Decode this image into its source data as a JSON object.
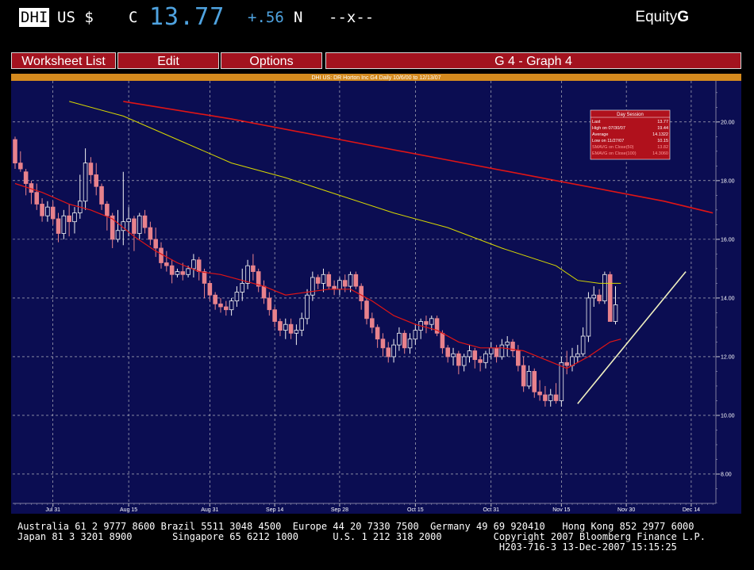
{
  "header": {
    "ticker": "DHI",
    "market": "US $",
    "flag": "C",
    "last_price": "13.77",
    "change": "+.56",
    "change_flag": "N",
    "extra": "--x--",
    "security_type": "Equity",
    "function_key": "G"
  },
  "menu": {
    "worksheet_list": "Worksheet List",
    "edit": "Edit",
    "options": "Options",
    "graph_title": "G  4 - Graph  4"
  },
  "colors": {
    "plot_bg": "#0b0d52",
    "candle_down": "#e8828c",
    "candle_up": "#f2f2f2",
    "ma_short": "#e01515",
    "ma_mid": "#d8d800",
    "ma_long": "#e01515",
    "trendline": "#f0f0c0",
    "info_box": "#b0111c"
  },
  "chart_data": {
    "type": "candlestick",
    "title": "DHI US: DR Horton Inc G4 Daily 10/6/00 to 12/13/07",
    "ylim": [
      7.0,
      21.4
    ],
    "y_ticks": [
      "20.00",
      "18.00",
      "16.00",
      "14.00",
      "12.00",
      "10.00",
      "8.00"
    ],
    "x_ticks": [
      "Jul 31",
      "Aug 15",
      "Aug 31",
      "Sep 14",
      "Sep 28",
      "Oct 15",
      "Oct 31",
      "Nov 15",
      "Nov 30",
      "Dec 14"
    ],
    "grid": "dashed-white",
    "candles_ohlc": [
      [
        19.4,
        19.5,
        18.4,
        18.6
      ],
      [
        18.6,
        19.0,
        18.3,
        18.4
      ],
      [
        18.3,
        18.4,
        17.5,
        17.9
      ],
      [
        17.9,
        18.0,
        17.2,
        17.6
      ],
      [
        17.6,
        17.9,
        17.0,
        17.2
      ],
      [
        17.2,
        17.4,
        16.6,
        16.8
      ],
      [
        16.8,
        17.3,
        16.6,
        17.1
      ],
      [
        17.1,
        17.3,
        16.5,
        16.7
      ],
      [
        16.7,
        16.9,
        15.9,
        16.2
      ],
      [
        16.2,
        17.0,
        16.0,
        16.8
      ],
      [
        16.8,
        17.2,
        16.1,
        16.6
      ],
      [
        16.6,
        17.1,
        16.2,
        16.9
      ],
      [
        16.9,
        18.2,
        16.7,
        17.3
      ],
      [
        17.3,
        19.1,
        17.0,
        18.6
      ],
      [
        18.6,
        18.8,
        17.9,
        18.2
      ],
      [
        18.2,
        18.6,
        17.5,
        17.8
      ],
      [
        17.8,
        17.9,
        17.0,
        17.2
      ],
      [
        17.2,
        17.3,
        16.3,
        16.8
      ],
      [
        16.8,
        16.9,
        15.7,
        16.0
      ],
      [
        16.0,
        17.0,
        15.9,
        16.3
      ],
      [
        16.3,
        18.3,
        15.8,
        16.6
      ],
      [
        16.6,
        17.1,
        16.1,
        16.7
      ],
      [
        16.7,
        16.8,
        15.6,
        16.2
      ],
      [
        16.2,
        16.9,
        16.0,
        16.8
      ],
      [
        16.8,
        17.0,
        16.2,
        16.4
      ],
      [
        16.4,
        16.6,
        15.8,
        16.0
      ],
      [
        16.0,
        16.4,
        15.4,
        15.7
      ],
      [
        15.7,
        15.9,
        15.0,
        15.2
      ],
      [
        15.2,
        15.6,
        14.9,
        15.1
      ],
      [
        15.1,
        15.3,
        14.5,
        14.8
      ],
      [
        14.8,
        15.0,
        14.7,
        14.9
      ],
      [
        14.9,
        15.2,
        14.6,
        14.8
      ],
      [
        14.8,
        15.1,
        14.7,
        15.0
      ],
      [
        15.0,
        15.5,
        14.7,
        15.3
      ],
      [
        15.3,
        15.4,
        14.6,
        14.9
      ],
      [
        14.9,
        15.0,
        14.0,
        14.5
      ],
      [
        14.5,
        14.6,
        13.9,
        14.1
      ],
      [
        14.1,
        14.2,
        13.6,
        13.8
      ],
      [
        13.8,
        14.0,
        13.5,
        13.7
      ],
      [
        13.7,
        13.9,
        13.4,
        13.6
      ],
      [
        13.6,
        14.0,
        13.4,
        13.9
      ],
      [
        13.9,
        14.4,
        13.7,
        14.2
      ],
      [
        14.2,
        15.0,
        13.9,
        14.5
      ],
      [
        14.5,
        15.3,
        14.3,
        15.1
      ],
      [
        15.1,
        15.5,
        14.6,
        14.9
      ],
      [
        14.9,
        15.0,
        14.2,
        14.4
      ],
      [
        14.4,
        14.6,
        13.8,
        14.0
      ],
      [
        14.0,
        14.2,
        13.4,
        13.6
      ],
      [
        13.6,
        13.7,
        13.0,
        13.2
      ],
      [
        13.2,
        13.3,
        12.7,
        12.9
      ],
      [
        12.9,
        13.3,
        12.6,
        13.1
      ],
      [
        13.1,
        13.3,
        12.6,
        12.8
      ],
      [
        12.8,
        13.1,
        12.4,
        12.9
      ],
      [
        12.9,
        13.5,
        12.7,
        13.3
      ],
      [
        13.3,
        14.3,
        13.1,
        14.1
      ],
      [
        14.1,
        14.9,
        13.9,
        14.7
      ],
      [
        14.7,
        14.8,
        14.3,
        14.5
      ],
      [
        14.5,
        15.0,
        14.2,
        14.8
      ],
      [
        14.8,
        14.9,
        14.3,
        14.4
      ],
      [
        14.4,
        14.6,
        14.1,
        14.3
      ],
      [
        14.3,
        14.7,
        14.1,
        14.6
      ],
      [
        14.6,
        14.8,
        14.2,
        14.4
      ],
      [
        14.4,
        14.9,
        14.2,
        14.8
      ],
      [
        14.8,
        14.9,
        14.3,
        14.4
      ],
      [
        14.4,
        14.5,
        13.6,
        13.9
      ],
      [
        13.9,
        14.0,
        13.1,
        13.3
      ],
      [
        13.3,
        13.5,
        12.8,
        13.0
      ],
      [
        13.0,
        13.1,
        12.3,
        12.6
      ],
      [
        12.6,
        12.8,
        12.0,
        12.3
      ],
      [
        12.3,
        12.5,
        11.8,
        12.0
      ],
      [
        12.0,
        12.6,
        11.8,
        12.4
      ],
      [
        12.4,
        13.0,
        12.2,
        12.8
      ],
      [
        12.8,
        12.9,
        12.1,
        12.3
      ],
      [
        12.3,
        12.8,
        12.1,
        12.6
      ],
      [
        12.6,
        13.1,
        12.4,
        12.9
      ],
      [
        12.9,
        13.3,
        12.6,
        13.2
      ],
      [
        13.2,
        13.4,
        12.8,
        13.1
      ],
      [
        13.1,
        13.4,
        12.9,
        13.3
      ],
      [
        13.3,
        13.4,
        12.7,
        12.8
      ],
      [
        12.8,
        12.9,
        12.1,
        12.3
      ],
      [
        12.3,
        12.4,
        11.8,
        12.0
      ],
      [
        12.0,
        12.3,
        11.7,
        12.1
      ],
      [
        12.1,
        12.2,
        11.4,
        11.7
      ],
      [
        11.7,
        12.1,
        11.5,
        12.0
      ],
      [
        12.0,
        12.4,
        11.8,
        12.2
      ],
      [
        12.2,
        12.3,
        11.6,
        11.9
      ],
      [
        11.9,
        12.0,
        11.5,
        11.8
      ],
      [
        11.8,
        12.2,
        11.6,
        12.1
      ],
      [
        12.1,
        12.5,
        11.9,
        12.3
      ],
      [
        12.3,
        12.4,
        11.8,
        12.0
      ],
      [
        12.0,
        12.6,
        11.9,
        12.4
      ],
      [
        12.4,
        12.7,
        12.0,
        12.5
      ],
      [
        12.5,
        12.6,
        12.0,
        12.2
      ],
      [
        12.2,
        12.4,
        11.5,
        11.7
      ],
      [
        11.7,
        12.0,
        10.8,
        11.0
      ],
      [
        11.0,
        11.7,
        10.9,
        11.5
      ],
      [
        11.5,
        11.6,
        10.6,
        10.8
      ],
      [
        10.8,
        11.2,
        10.5,
        10.7
      ],
      [
        10.7,
        11.0,
        10.3,
        10.5
      ],
      [
        10.5,
        10.9,
        10.3,
        10.7
      ],
      [
        10.7,
        11.1,
        10.4,
        10.5
      ],
      [
        10.5,
        12.0,
        10.3,
        11.8
      ],
      [
        11.8,
        12.2,
        11.4,
        11.7
      ],
      [
        11.7,
        12.3,
        11.5,
        12.0
      ],
      [
        12.0,
        12.4,
        11.8,
        12.1
      ],
      [
        12.1,
        13.0,
        12.0,
        12.7
      ],
      [
        12.7,
        14.2,
        12.5,
        14.0
      ],
      [
        14.0,
        14.4,
        13.7,
        14.1
      ],
      [
        14.1,
        14.3,
        13.8,
        13.9
      ],
      [
        13.9,
        14.9,
        13.8,
        14.8
      ],
      [
        14.8,
        14.9,
        13.4,
        13.2
      ],
      [
        13.2,
        14.4,
        13.1,
        13.77
      ]
    ],
    "ma_short": [
      [
        0,
        17.9
      ],
      [
        5,
        17.6
      ],
      [
        10,
        17.2
      ],
      [
        14,
        17.0
      ],
      [
        18,
        16.7
      ],
      [
        22,
        16.1
      ],
      [
        26,
        15.6
      ],
      [
        30,
        15.2
      ],
      [
        34,
        14.9
      ],
      [
        38,
        14.8
      ],
      [
        42,
        14.6
      ],
      [
        46,
        14.4
      ],
      [
        50,
        14.1
      ],
      [
        54,
        14.2
      ],
      [
        58,
        14.3
      ],
      [
        62,
        14.3
      ],
      [
        66,
        13.9
      ],
      [
        70,
        13.4
      ],
      [
        74,
        13.1
      ],
      [
        78,
        12.9
      ],
      [
        82,
        12.5
      ],
      [
        86,
        12.3
      ],
      [
        90,
        12.3
      ],
      [
        94,
        12.2
      ],
      [
        98,
        11.9
      ],
      [
        102,
        11.6
      ],
      [
        106,
        12.0
      ],
      [
        110,
        12.5
      ],
      [
        112,
        12.6
      ]
    ],
    "ma_mid": [
      [
        10,
        20.7
      ],
      [
        20,
        20.2
      ],
      [
        30,
        19.4
      ],
      [
        40,
        18.6
      ],
      [
        50,
        18.1
      ],
      [
        60,
        17.5
      ],
      [
        70,
        16.9
      ],
      [
        80,
        16.4
      ],
      [
        90,
        15.7
      ],
      [
        100,
        15.1
      ],
      [
        104,
        14.6
      ],
      [
        108,
        14.5
      ],
      [
        112,
        14.5
      ]
    ],
    "ma_long": [
      [
        20,
        20.7
      ],
      [
        40,
        20.1
      ],
      [
        60,
        19.4
      ],
      [
        80,
        18.7
      ],
      [
        100,
        18.0
      ],
      [
        120,
        17.3
      ],
      [
        129,
        16.9
      ]
    ],
    "trendline": [
      [
        104,
        10.4
      ],
      [
        124,
        14.9
      ]
    ],
    "info_box": {
      "title": "Day Session",
      "rows": [
        [
          "Last",
          "13.77"
        ],
        [
          "High on  07/30/07",
          "19.44"
        ],
        [
          "Average",
          "14.1322"
        ],
        [
          "Low on  11/27/07",
          "10.15"
        ],
        [
          "SMAVG on Close(50)",
          "13.82"
        ],
        [
          "EMAVG on Close(100)",
          "14.3060"
        ]
      ]
    }
  },
  "footer": {
    "line1": "Australia 61 2 9777 8600 Brazil 5511 3048 4500  Europe 44 20 7330 7500  Germany 49 69 920410   Hong Kong 852 2977 6000",
    "line2": "Japan 81 3 3201 8900       Singapore 65 6212 1000      U.S. 1 212 318 2000         Copyright 2007 Bloomberg Finance L.P.",
    "line3": "                                                                                    H203-716-3 13-Dec-2007 15:15:25"
  }
}
